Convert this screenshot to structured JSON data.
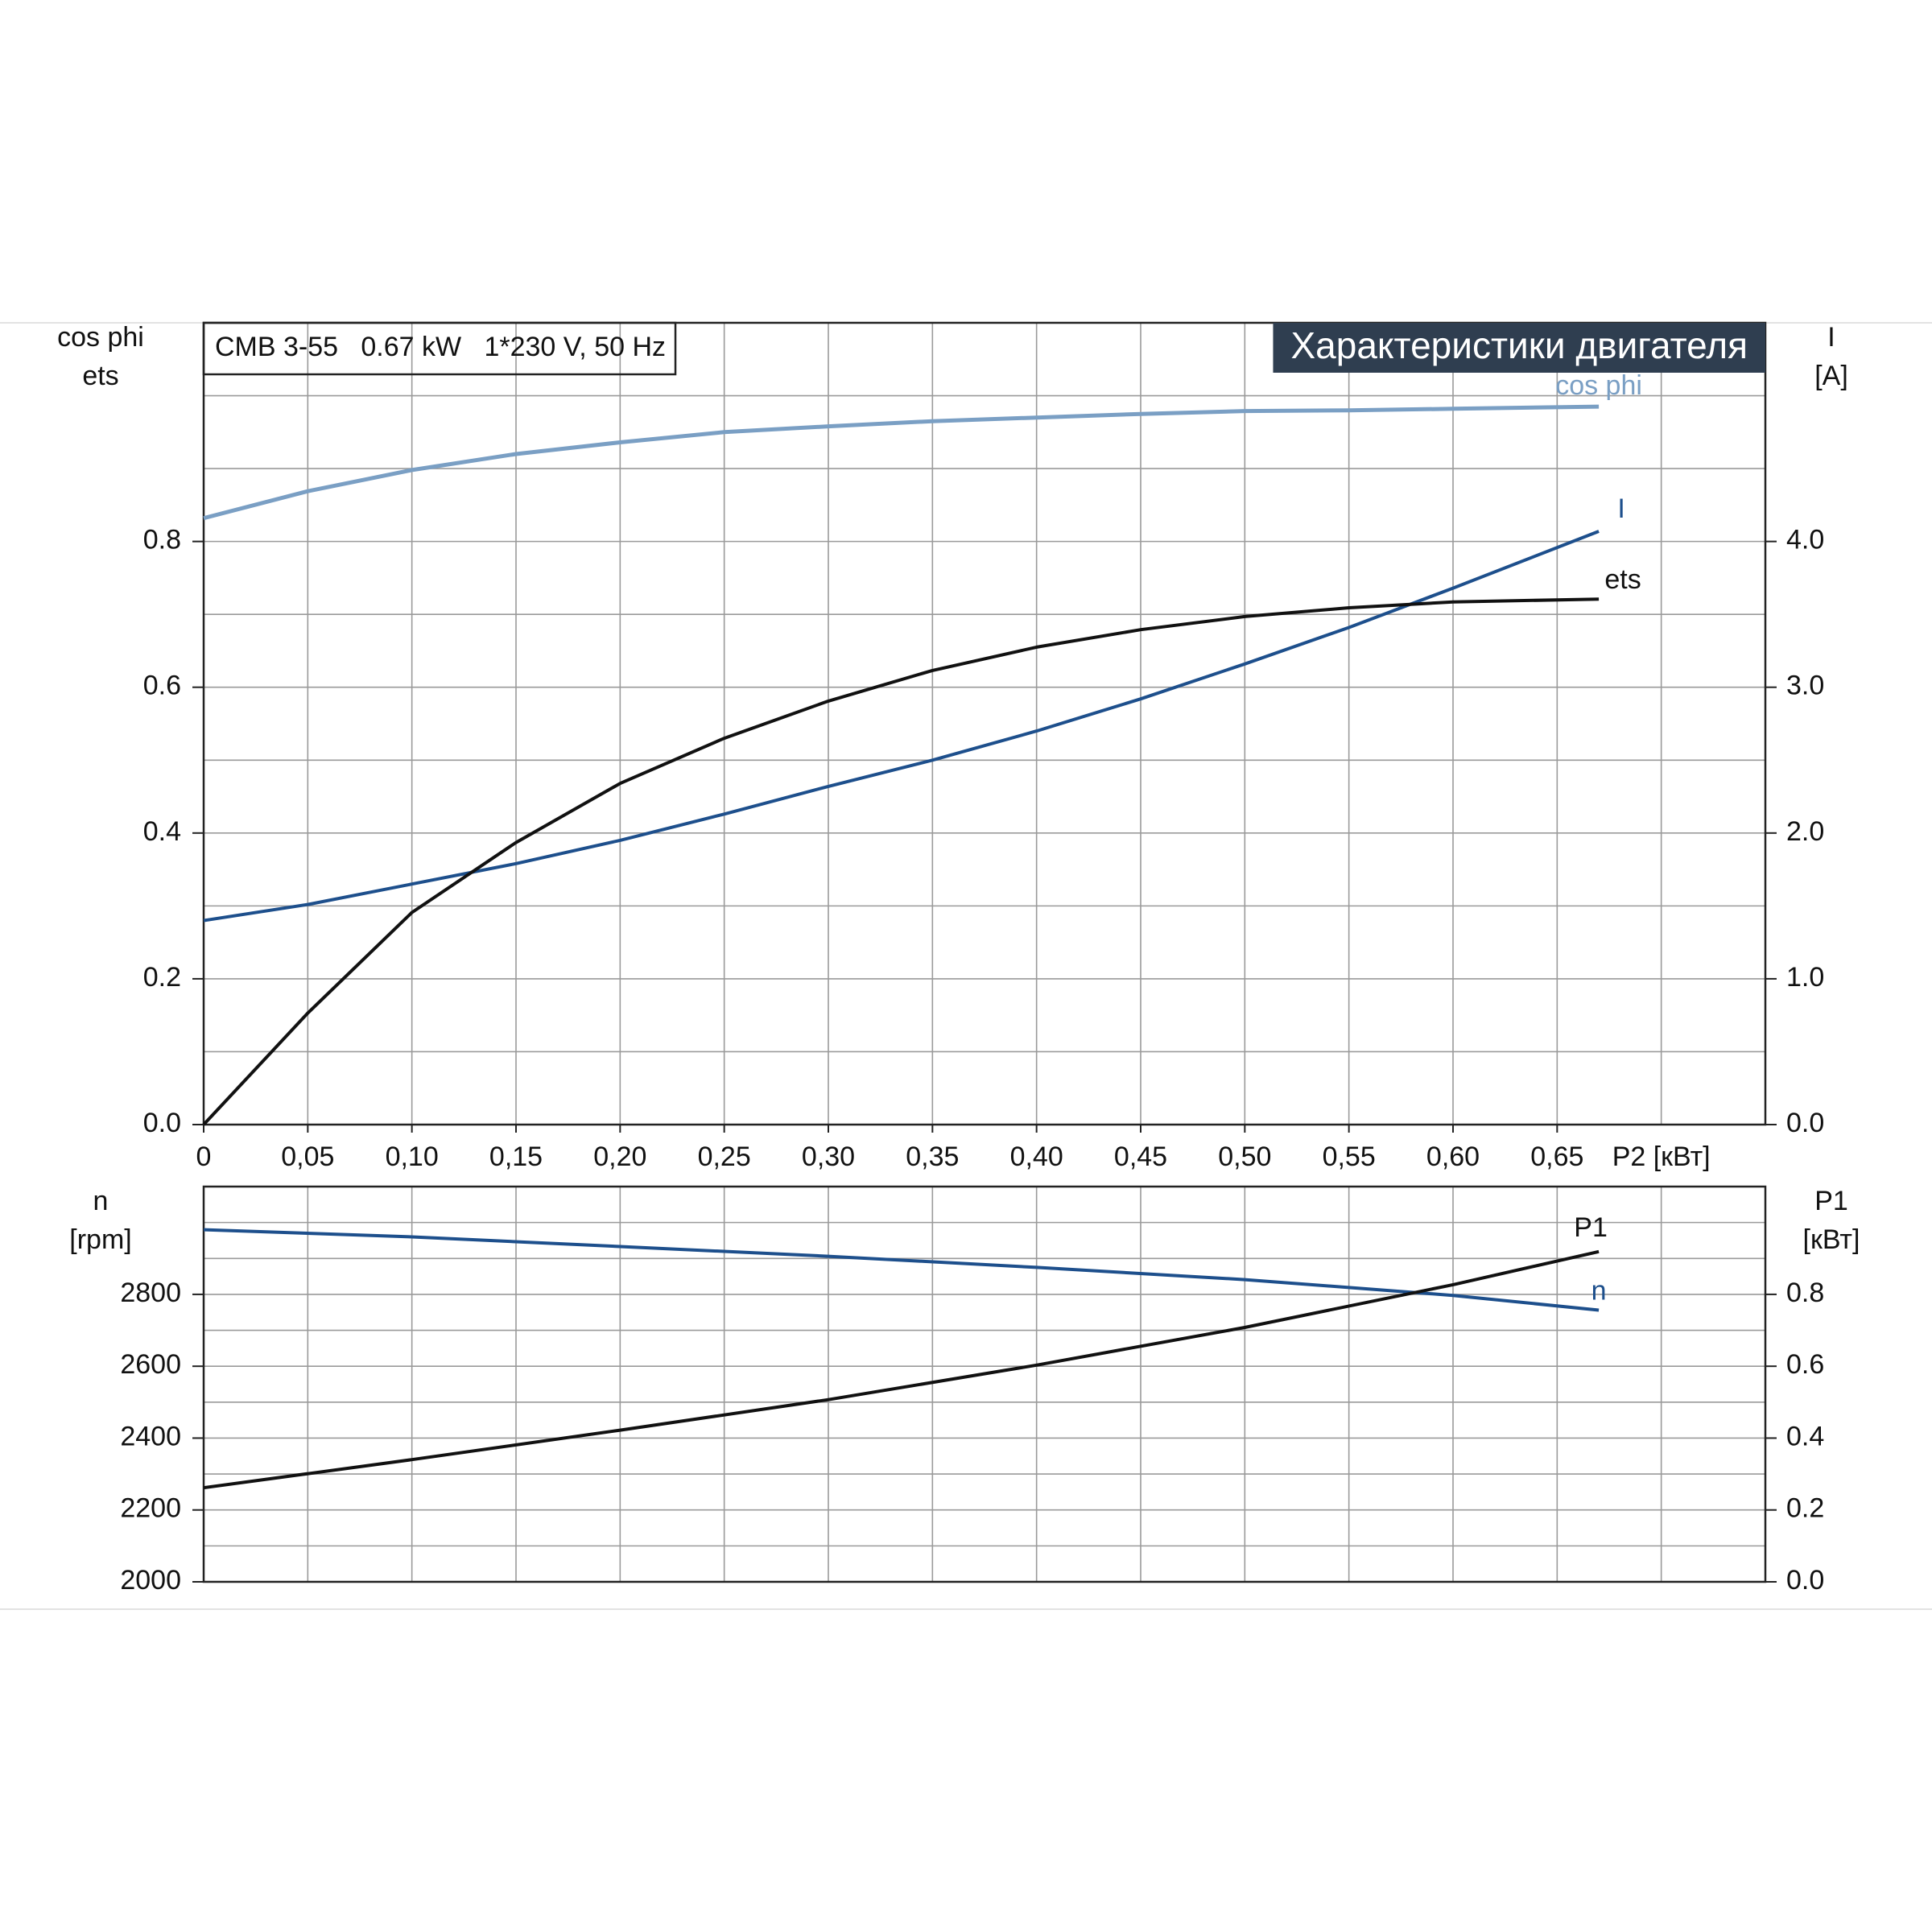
{
  "chart_data": [
    {
      "type": "line",
      "title": "CMB 3-55   0.67 kW   1*230 V, 50 Hz",
      "header": "Характеристики двигателя",
      "ylabel": [
        "cos phi",
        "ets"
      ],
      "y2label": [
        "I",
        "[A]"
      ],
      "xlabel": "P2 [кВт]",
      "xlim": [
        0,
        0.75
      ],
      "xticks": [
        0,
        {
          "value": 0.05,
          "label": "0,05"
        },
        {
          "value": 0.1,
          "label": "0,10"
        },
        {
          "value": 0.15,
          "label": "0,15"
        },
        {
          "value": 0.2,
          "label": "0,20"
        },
        {
          "value": 0.25,
          "label": "0,25"
        },
        {
          "value": 0.3,
          "label": "0,30"
        },
        {
          "value": 0.35,
          "label": "0,35"
        },
        {
          "value": 0.4,
          "label": "0,40"
        },
        {
          "value": 0.45,
          "label": "0,45"
        },
        {
          "value": 0.5,
          "label": "0,50"
        },
        {
          "value": 0.55,
          "label": "0,55"
        },
        {
          "value": 0.6,
          "label": "0,60"
        },
        {
          "value": 0.65,
          "label": "0,65"
        }
      ],
      "xgrid": [
        0.05,
        0.1,
        0.15,
        0.2,
        0.25,
        0.3,
        0.35,
        0.4,
        0.45,
        0.5,
        0.55,
        0.6,
        0.65,
        0.7
      ],
      "ylim": [
        0,
        1.1
      ],
      "yticks": [
        {
          "value": 0,
          "label": "0.0"
        },
        {
          "value": 0.2,
          "label": "0.2"
        },
        {
          "value": 0.4,
          "label": "0.4"
        },
        {
          "value": 0.6,
          "label": "0.6"
        },
        {
          "value": 0.8,
          "label": "0.8"
        }
      ],
      "ygrid": [
        0.1,
        0.2,
        0.3,
        0.4,
        0.5,
        0.6,
        0.7,
        0.8,
        0.9,
        1.0
      ],
      "y2lim": [
        0,
        5.5
      ],
      "y2ticks": [
        {
          "value": 0,
          "label": "0.0"
        },
        {
          "value": 1,
          "label": "1.0"
        },
        {
          "value": 2,
          "label": "2.0"
        },
        {
          "value": 3,
          "label": "3.0"
        },
        {
          "value": 4,
          "label": "4.0"
        }
      ],
      "x": [
        0,
        0.05,
        0.1,
        0.15,
        0.2,
        0.25,
        0.3,
        0.35,
        0.4,
        0.45,
        0.5,
        0.55,
        0.6,
        0.67
      ],
      "series": [
        {
          "name": "cos phi",
          "color": "#7a9fc4",
          "values": [
            0.832,
            0.869,
            0.898,
            0.92,
            0.936,
            0.95,
            0.958,
            0.965,
            0.97,
            0.975,
            0.979,
            0.98,
            0.982,
            0.985
          ]
        },
        {
          "name": "I",
          "color": "#1d4f8c",
          "axis": "y2",
          "values": [
            1.4,
            1.51,
            1.65,
            1.79,
            1.95,
            2.13,
            2.32,
            2.5,
            2.7,
            2.92,
            3.16,
            3.41,
            3.68,
            4.07
          ]
        },
        {
          "name": "ets",
          "color": "#111111",
          "values": [
            0,
            0.153,
            0.291,
            0.387,
            0.468,
            0.53,
            0.581,
            0.623,
            0.655,
            0.679,
            0.697,
            0.709,
            0.717,
            0.721
          ]
        }
      ]
    },
    {
      "type": "line",
      "ylabel": [
        "n",
        "[rpm]"
      ],
      "y2label": [
        "P1",
        "[кВт]"
      ],
      "xlim": [
        0,
        0.75
      ],
      "xgrid": [
        0.05,
        0.1,
        0.15,
        0.2,
        0.25,
        0.3,
        0.35,
        0.4,
        0.45,
        0.5,
        0.55,
        0.6,
        0.65,
        0.7
      ],
      "ylim": [
        2000,
        3100
      ],
      "yticks": [
        2000,
        2200,
        2400,
        2600,
        2800
      ],
      "ygrid": [
        2100,
        2200,
        2300,
        2400,
        2500,
        2600,
        2700,
        2800,
        2900,
        3000
      ],
      "y2lim": [
        0,
        1.1
      ],
      "y2ticks": [
        {
          "value": 0,
          "label": "0.0"
        },
        {
          "value": 0.2,
          "label": "0.2"
        },
        {
          "value": 0.4,
          "label": "0.4"
        },
        {
          "value": 0.6,
          "label": "0.6"
        },
        {
          "value": 0.8,
          "label": "0.8"
        }
      ],
      "x": [
        0,
        0.1,
        0.2,
        0.3,
        0.4,
        0.5,
        0.6,
        0.67
      ],
      "series": [
        {
          "name": "n",
          "color": "#1d4f8c",
          "values": [
            2980,
            2960,
            2933,
            2906,
            2875,
            2841,
            2797,
            2756
          ]
        },
        {
          "name": "P1",
          "color": "#111111",
          "axis": "y2",
          "values": [
            0.262,
            0.34,
            0.422,
            0.507,
            0.603,
            0.708,
            0.827,
            0.919
          ]
        }
      ]
    }
  ]
}
